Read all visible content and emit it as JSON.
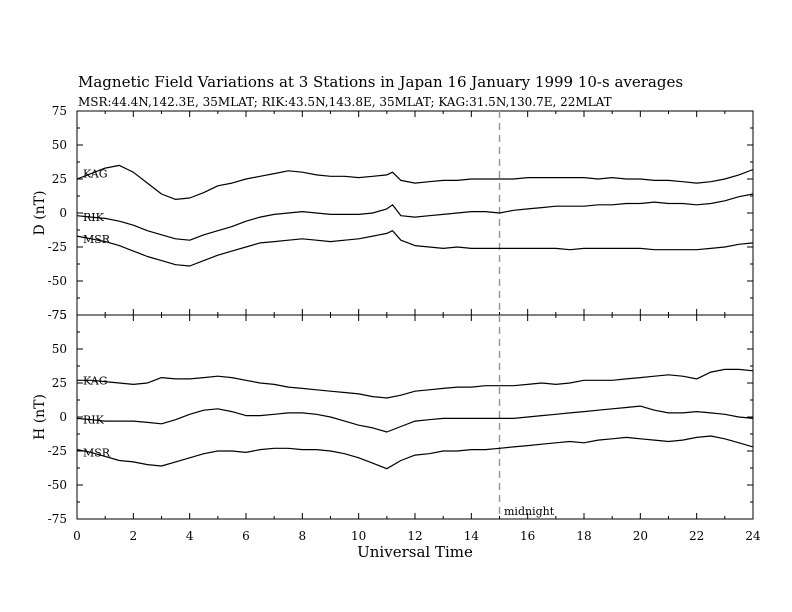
{
  "header": {
    "title": "Magnetic Field Variations at 3 Stations in Japan         16 January 1999      10-s averages",
    "subtitle": "MSR:44.4N,142.3E, 35MLAT;   RIK:43.5N,143.8E, 35MLAT;   KAG:31.5N,130.7E, 22MLAT"
  },
  "chart_data": [
    {
      "type": "line",
      "ylabel": "D (nT)",
      "xlim": [
        0,
        24
      ],
      "ylim": [
        -75,
        75
      ],
      "yticks": [
        75,
        50,
        25,
        0,
        -25,
        -50,
        -75
      ],
      "grid": false,
      "series": [
        {
          "name": "KAG",
          "x": [
            0,
            0.5,
            1,
            1.5,
            2,
            2.5,
            3,
            3.5,
            4,
            4.5,
            5,
            5.5,
            6,
            6.5,
            7,
            7.5,
            8,
            8.5,
            9,
            9.5,
            10,
            10.5,
            11,
            11.2,
            11.5,
            12,
            12.5,
            13,
            13.5,
            14,
            14.5,
            15,
            15.5,
            16,
            16.5,
            17,
            17.5,
            18,
            18.5,
            19,
            19.5,
            20,
            20.5,
            21,
            21.5,
            22,
            22.5,
            23,
            23.5,
            24
          ],
          "y": [
            25,
            29,
            33,
            35,
            30,
            22,
            14,
            10,
            11,
            15,
            20,
            22,
            25,
            27,
            29,
            31,
            30,
            28,
            27,
            27,
            26,
            27,
            28,
            30,
            24,
            22,
            23,
            24,
            24,
            25,
            25,
            25,
            25,
            26,
            26,
            26,
            26,
            26,
            25,
            26,
            25,
            25,
            24,
            24,
            23,
            22,
            23,
            25,
            28,
            32
          ]
        },
        {
          "name": "RIK",
          "x": [
            0,
            0.5,
            1,
            1.5,
            2,
            2.5,
            3,
            3.5,
            4,
            4.5,
            5,
            5.5,
            6,
            6.5,
            7,
            7.5,
            8,
            8.5,
            9,
            9.5,
            10,
            10.5,
            11,
            11.2,
            11.5,
            12,
            12.5,
            13,
            13.5,
            14,
            14.5,
            15,
            15.5,
            16,
            16.5,
            17,
            17.5,
            18,
            18.5,
            19,
            19.5,
            20,
            20.5,
            21,
            21.5,
            22,
            22.5,
            23,
            23.5,
            24
          ],
          "y": [
            -2,
            -3,
            -4,
            -6,
            -9,
            -13,
            -16,
            -19,
            -20,
            -16,
            -13,
            -10,
            -6,
            -3,
            -1,
            0,
            1,
            0,
            -1,
            -1,
            -1,
            0,
            3,
            6,
            -2,
            -3,
            -2,
            -1,
            0,
            1,
            1,
            0,
            2,
            3,
            4,
            5,
            5,
            5,
            6,
            6,
            7,
            7,
            8,
            7,
            7,
            6,
            7,
            9,
            12,
            14
          ]
        },
        {
          "name": "MSR",
          "x": [
            0,
            0.5,
            1,
            1.5,
            2,
            2.5,
            3,
            3.5,
            4,
            4.5,
            5,
            5.5,
            6,
            6.5,
            7,
            7.5,
            8,
            8.5,
            9,
            9.5,
            10,
            10.5,
            11,
            11.2,
            11.5,
            12,
            12.5,
            13,
            13.5,
            14,
            14.5,
            15,
            15.5,
            16,
            16.5,
            17,
            17.5,
            18,
            18.5,
            19,
            19.5,
            20,
            20.5,
            21,
            21.5,
            22,
            22.5,
            23,
            23.5,
            24
          ],
          "y": [
            -17,
            -19,
            -21,
            -24,
            -28,
            -32,
            -35,
            -38,
            -39,
            -35,
            -31,
            -28,
            -25,
            -22,
            -21,
            -20,
            -19,
            -20,
            -21,
            -20,
            -19,
            -17,
            -15,
            -13,
            -20,
            -24,
            -25,
            -26,
            -25,
            -26,
            -26,
            -26,
            -26,
            -26,
            -26,
            -26,
            -27,
            -26,
            -26,
            -26,
            -26,
            -26,
            -27,
            -27,
            -27,
            -27,
            -26,
            -25,
            -23,
            -22
          ]
        }
      ]
    },
    {
      "type": "line",
      "ylabel": "H (nT)",
      "xlabel": "Universal Time",
      "xlim": [
        0,
        24
      ],
      "ylim": [
        -75,
        75
      ],
      "xticks": [
        0,
        2,
        4,
        6,
        8,
        10,
        12,
        14,
        16,
        18,
        20,
        22,
        24
      ],
      "yticks": [
        75,
        50,
        25,
        0,
        -25,
        -50,
        -75
      ],
      "grid": false,
      "series": [
        {
          "name": "KAG",
          "x": [
            0,
            0.5,
            1,
            1.5,
            2,
            2.5,
            3,
            3.5,
            4,
            4.5,
            5,
            5.5,
            6,
            6.5,
            7,
            7.5,
            8,
            8.5,
            9,
            9.5,
            10,
            10.5,
            11,
            11.5,
            12,
            12.5,
            13,
            13.5,
            14,
            14.5,
            15,
            15.5,
            16,
            16.5,
            17,
            17.5,
            18,
            18.5,
            19,
            19.5,
            20,
            20.5,
            21,
            21.5,
            22,
            22.5,
            23,
            23.5,
            24
          ],
          "y": [
            27,
            27,
            26,
            25,
            24,
            25,
            29,
            28,
            28,
            29,
            30,
            29,
            27,
            25,
            24,
            22,
            21,
            20,
            19,
            18,
            17,
            15,
            14,
            16,
            19,
            20,
            21,
            22,
            22,
            23,
            23,
            23,
            24,
            25,
            24,
            25,
            27,
            27,
            27,
            28,
            29,
            30,
            31,
            30,
            28,
            33,
            35,
            35,
            34
          ]
        },
        {
          "name": "RIK",
          "x": [
            0,
            0.5,
            1,
            1.5,
            2,
            2.5,
            3,
            3.5,
            4,
            4.5,
            5,
            5.5,
            6,
            6.5,
            7,
            7.5,
            8,
            8.5,
            9,
            9.5,
            10,
            10.5,
            11,
            11.5,
            12,
            12.5,
            13,
            13.5,
            14,
            14.5,
            15,
            15.5,
            16,
            16.5,
            17,
            17.5,
            18,
            18.5,
            19,
            19.5,
            20,
            20.5,
            21,
            21.5,
            22,
            22.5,
            23,
            23.5,
            24
          ],
          "y": [
            -1,
            -2,
            -3,
            -3,
            -3,
            -4,
            -5,
            -2,
            2,
            5,
            6,
            4,
            1,
            1,
            2,
            3,
            3,
            2,
            0,
            -3,
            -6,
            -8,
            -11,
            -7,
            -3,
            -2,
            -1,
            -1,
            -1,
            -1,
            -1,
            -1,
            0,
            1,
            2,
            3,
            4,
            5,
            6,
            7,
            8,
            5,
            3,
            3,
            4,
            3,
            2,
            0,
            -1
          ]
        },
        {
          "name": "MSR",
          "x": [
            0,
            0.5,
            1,
            1.5,
            2,
            2.5,
            3,
            3.5,
            4,
            4.5,
            5,
            5.5,
            6,
            6.5,
            7,
            7.5,
            8,
            8.5,
            9,
            9.5,
            10,
            10.5,
            11,
            11.5,
            12,
            12.5,
            13,
            13.5,
            14,
            14.5,
            15,
            15.5,
            16,
            16.5,
            17,
            17.5,
            18,
            18.5,
            19,
            19.5,
            20,
            20.5,
            21,
            21.5,
            22,
            22.5,
            23,
            23.5,
            24
          ],
          "y": [
            -24,
            -26,
            -29,
            -32,
            -33,
            -35,
            -36,
            -33,
            -30,
            -27,
            -25,
            -25,
            -26,
            -24,
            -23,
            -23,
            -24,
            -24,
            -25,
            -27,
            -30,
            -34,
            -38,
            -32,
            -28,
            -27,
            -25,
            -25,
            -24,
            -24,
            -23,
            -22,
            -21,
            -20,
            -19,
            -18,
            -19,
            -17,
            -16,
            -15,
            -16,
            -17,
            -18,
            -17,
            -15,
            -14,
            -16,
            -19,
            -22
          ]
        }
      ]
    }
  ],
  "marker": {
    "x": 15,
    "label": "midnight"
  }
}
